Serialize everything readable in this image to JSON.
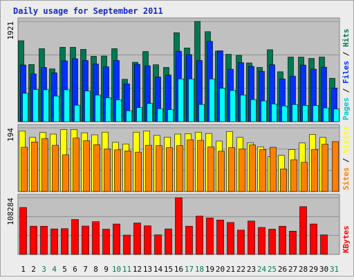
{
  "chart_data": {
    "type": "bar",
    "title": "Daily usage for September 2011",
    "x": [
      "1",
      "2",
      "3",
      "4",
      "5",
      "6",
      "7",
      "8",
      "9",
      "10",
      "11",
      "12",
      "13",
      "14",
      "15",
      "16",
      "17",
      "18",
      "19",
      "20",
      "21",
      "22",
      "23",
      "24",
      "25",
      "26",
      "27",
      "28",
      "29",
      "30",
      "31"
    ],
    "weekend_days": [
      "3",
      "4",
      "10",
      "11",
      "17",
      "18",
      "24",
      "25",
      "31"
    ],
    "colors": {
      "background": "#c0c0c0",
      "frame": "#ececec",
      "hits": "#007850",
      "files": "#0030ff",
      "pages": "#00ffff",
      "visits": "#ffff00",
      "sites": "#ff8000",
      "kbytes": "#ff0000",
      "title": "#1428c8",
      "weekday_label": "#000000",
      "weekend_label": "#007850"
    },
    "panels": [
      {
        "id": "hits-files-pages",
        "ymax_label": "1921",
        "ymax": 1921,
        "labels": [
          "Pages",
          "Files",
          "Hits"
        ],
        "label_colors": [
          "#00c8c8",
          "#0030ff",
          "#007850"
        ],
        "series": [
          {
            "name": "Hits",
            "color": "#007850",
            "values": [
              1552,
              1096,
              1399,
              1012,
              1426,
              1426,
              1386,
              1253,
              1259,
              1399,
              812,
              1139,
              1345,
              1092,
              1040,
              1705,
              1412,
              1921,
              1725,
              1352,
              1292,
              1272,
              1126,
              1040,
              1379,
              956,
              1239,
              1238,
              1212,
              1239,
              832
            ]
          },
          {
            "name": "Files",
            "color": "#0030ff",
            "values": [
              1087,
              916,
              1040,
              936,
              1166,
              1206,
              1173,
              1106,
              1052,
              1173,
              725,
              1099,
              1072,
              857,
              894,
              1350,
              1286,
              1173,
              1539,
              1359,
              1006,
              1132,
              1060,
              966,
              1092,
              819,
              873,
              1085,
              1007,
              1045,
              644
            ]
          },
          {
            "name": "Pages",
            "color": "#00ffff",
            "values": [
              544,
              617,
              611,
              490,
              611,
              317,
              588,
              511,
              457,
              417,
              210,
              270,
              350,
              250,
              230,
              820,
              820,
              330,
              820,
              640,
              600,
              510,
              422,
              397,
              341,
              301,
              328,
              311,
              311,
              264,
              244
            ]
          }
        ]
      },
      {
        "id": "visits-sites",
        "ymax_label": "194",
        "ymax": 194,
        "labels": [
          "Sites",
          "Visits"
        ],
        "label_colors": [
          "#ff8000",
          "#ffff00"
        ],
        "series": [
          {
            "name": "Visits",
            "color": "#ffff00",
            "values": [
              185,
              165,
              180,
              175,
              189,
              189,
              179,
              173,
              181,
              150,
              145,
              181,
              185,
              171,
              166,
              175,
              176,
              181,
              177,
              154,
              183,
              165,
              148,
              136,
              106,
              110,
              128,
              148,
              174,
              165,
              null
            ]
          },
          {
            "name": "Sites",
            "color": "#ff8000",
            "values": [
              135,
              151,
              161,
              141,
              112,
              163,
              155,
              143,
              130,
              127,
              124,
              120,
              141,
              140,
              134,
              140,
              158,
              156,
              136,
              123,
              134,
              130,
              142,
              128,
              135,
              69,
              97,
              89,
              128,
              144,
              152
            ]
          }
        ]
      },
      {
        "id": "kbytes",
        "ymax_label": "108284",
        "ymax": 108284,
        "labels": [
          "KBytes"
        ],
        "label_colors": [
          "#ff0000"
        ],
        "series": [
          {
            "name": "KBytes",
            "color": "#ff0000",
            "values": [
              89620,
              53860,
              53860,
              48760,
              49320,
              66660,
              54140,
              62650,
              48200,
              58120,
              37040,
              60040,
              54700,
              37320,
              48760,
              108284,
              53860,
              73140,
              69760,
              65700,
              61060,
              46500,
              63780,
              51560,
              48200,
              53860,
              44460,
              91280,
              58120,
              37320,
              null
            ]
          }
        ]
      }
    ]
  }
}
